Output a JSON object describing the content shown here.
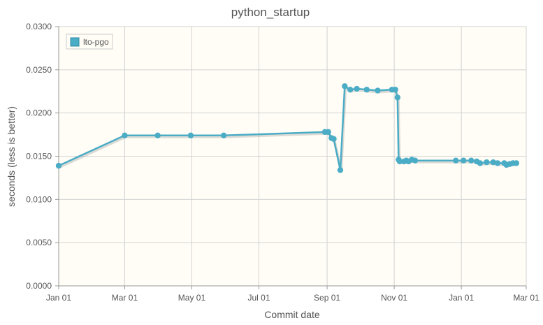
{
  "chart_data": {
    "type": "line",
    "title": "python_startup",
    "xlabel": "Commit date",
    "ylabel": "seconds (less is better)",
    "xlim": [
      "2016-01-01",
      "2017-03-01"
    ],
    "ylim": [
      0,
      0.03
    ],
    "x_ticks": [
      "Jan 01",
      "Mar 01",
      "May 01",
      "Jul 01",
      "Sep 01",
      "Nov 01",
      "Jan 01",
      "Mar 01"
    ],
    "y_ticks": [
      "0.0000",
      "0.0050",
      "0.0100",
      "0.0150",
      "0.0200",
      "0.0250",
      "0.0300"
    ],
    "grid": true,
    "legend": "top-left",
    "series": [
      {
        "name": "lto-pgo",
        "color": "#4bacc6",
        "x": [
          "2016-01-01",
          "2016-03-01",
          "2016-03-31",
          "2016-04-30",
          "2016-05-30",
          "2016-08-30",
          "2016-09-02",
          "2016-09-05",
          "2016-09-07",
          "2016-09-13",
          "2016-09-17",
          "2016-09-22",
          "2016-09-28",
          "2016-10-07",
          "2016-10-17",
          "2016-10-30",
          "2016-11-02",
          "2016-11-04",
          "2016-11-05",
          "2016-11-06",
          "2016-11-10",
          "2016-11-12",
          "2016-11-14",
          "2016-11-17",
          "2016-11-20",
          "2016-12-27",
          "2017-01-03",
          "2017-01-10",
          "2017-01-15",
          "2017-01-18",
          "2017-01-24",
          "2017-01-30",
          "2017-02-03",
          "2017-02-09",
          "2017-02-11",
          "2017-02-14",
          "2017-02-17",
          "2017-02-20"
        ],
        "values": [
          0.0139,
          0.0174,
          0.0174,
          0.0174,
          0.0174,
          0.0178,
          0.0178,
          0.0171,
          0.017,
          0.0134,
          0.0231,
          0.0227,
          0.0228,
          0.0227,
          0.0226,
          0.0227,
          0.0227,
          0.0218,
          0.0146,
          0.0144,
          0.0144,
          0.0145,
          0.0144,
          0.0146,
          0.0145,
          0.0145,
          0.0145,
          0.0145,
          0.0144,
          0.0142,
          0.0143,
          0.0143,
          0.0142,
          0.0142,
          0.014,
          0.0141,
          0.0142,
          0.0142
        ]
      }
    ]
  }
}
